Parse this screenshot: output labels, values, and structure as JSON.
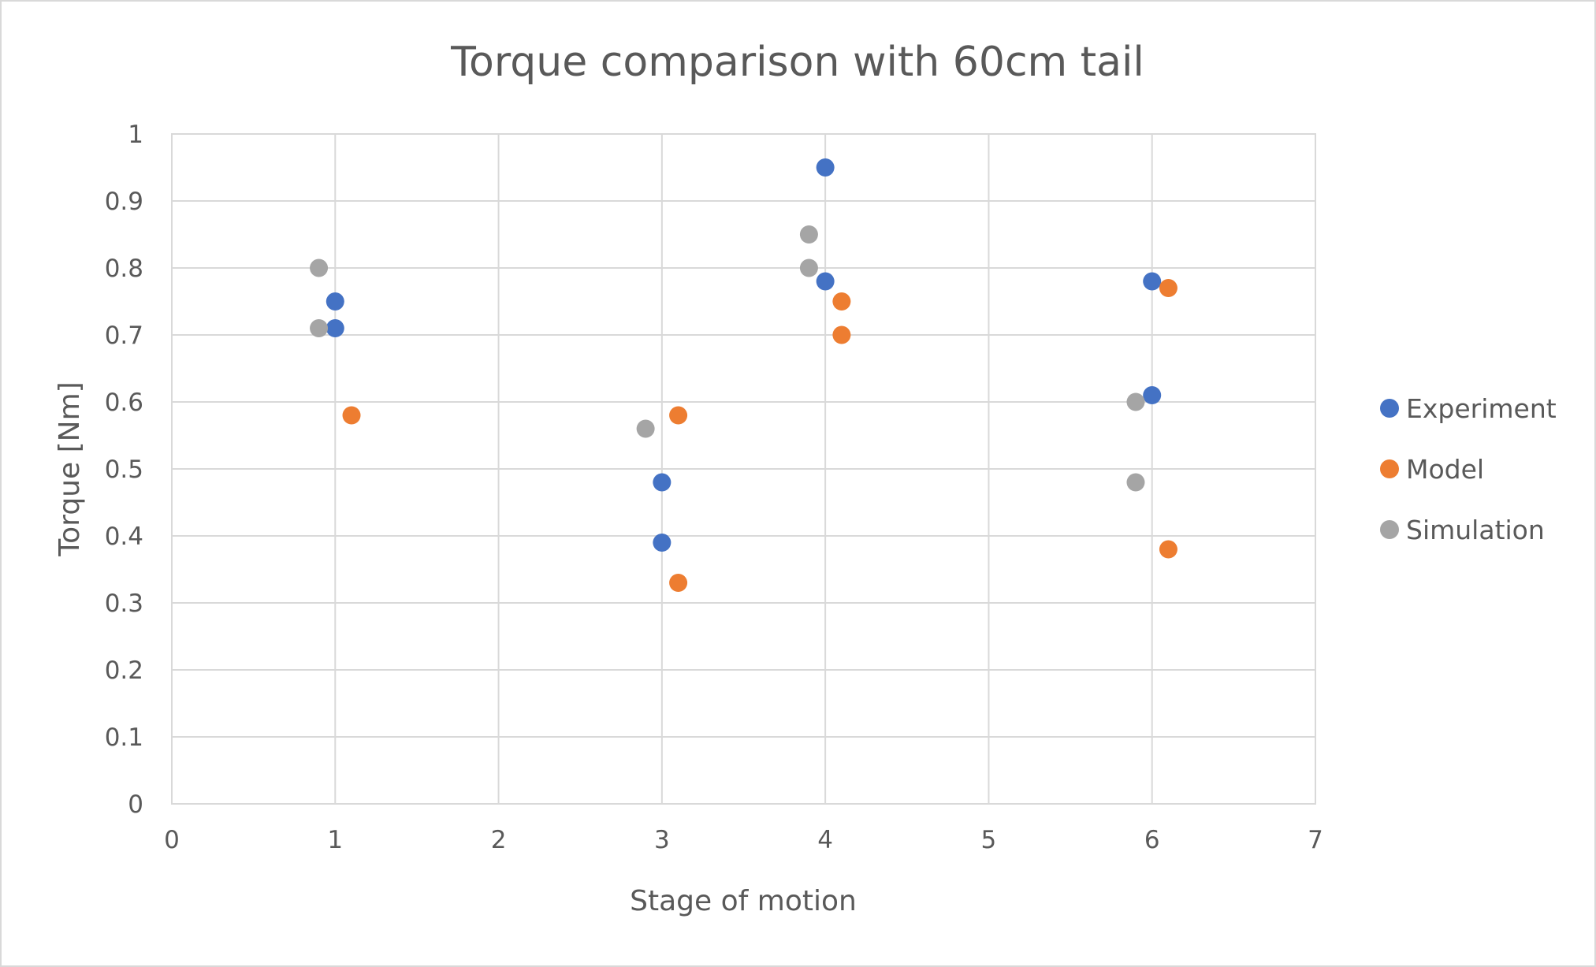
{
  "chart_data": {
    "type": "scatter",
    "title": "Torque comparison with 60cm tail",
    "xlabel": "Stage of motion",
    "ylabel": "Torque [Nm]",
    "xlim": [
      0,
      7
    ],
    "ylim": [
      0,
      1
    ],
    "x_ticks": [
      "0",
      "1",
      "2",
      "3",
      "4",
      "5",
      "6",
      "7"
    ],
    "y_ticks": [
      "0",
      "0.1",
      "0.2",
      "0.3",
      "0.4",
      "0.5",
      "0.6",
      "0.7",
      "0.8",
      "0.9",
      "1"
    ],
    "grid": true,
    "legend_position": "right",
    "series": [
      {
        "name": "Experiment",
        "color": "#4472c4",
        "points": [
          {
            "x": 1,
            "y": 0.75
          },
          {
            "x": 1,
            "y": 0.71
          },
          {
            "x": 3,
            "y": 0.48
          },
          {
            "x": 3,
            "y": 0.39
          },
          {
            "x": 4,
            "y": 0.95
          },
          {
            "x": 4,
            "y": 0.78
          },
          {
            "x": 6,
            "y": 0.78
          },
          {
            "x": 6,
            "y": 0.61
          }
        ]
      },
      {
        "name": "Model",
        "color": "#ed7d31",
        "points": [
          {
            "x": 1.1,
            "y": 0.58
          },
          {
            "x": 3.1,
            "y": 0.58
          },
          {
            "x": 3.1,
            "y": 0.33
          },
          {
            "x": 4.1,
            "y": 0.75
          },
          {
            "x": 4.1,
            "y": 0.7
          },
          {
            "x": 6.1,
            "y": 0.77
          },
          {
            "x": 6.1,
            "y": 0.38
          }
        ]
      },
      {
        "name": "Simulation",
        "color": "#a5a5a5",
        "points": [
          {
            "x": 0.9,
            "y": 0.8
          },
          {
            "x": 0.9,
            "y": 0.71
          },
          {
            "x": 2.9,
            "y": 0.56
          },
          {
            "x": 3.9,
            "y": 0.85
          },
          {
            "x": 3.9,
            "y": 0.8
          },
          {
            "x": 5.9,
            "y": 0.6
          },
          {
            "x": 5.9,
            "y": 0.48
          }
        ]
      }
    ]
  }
}
